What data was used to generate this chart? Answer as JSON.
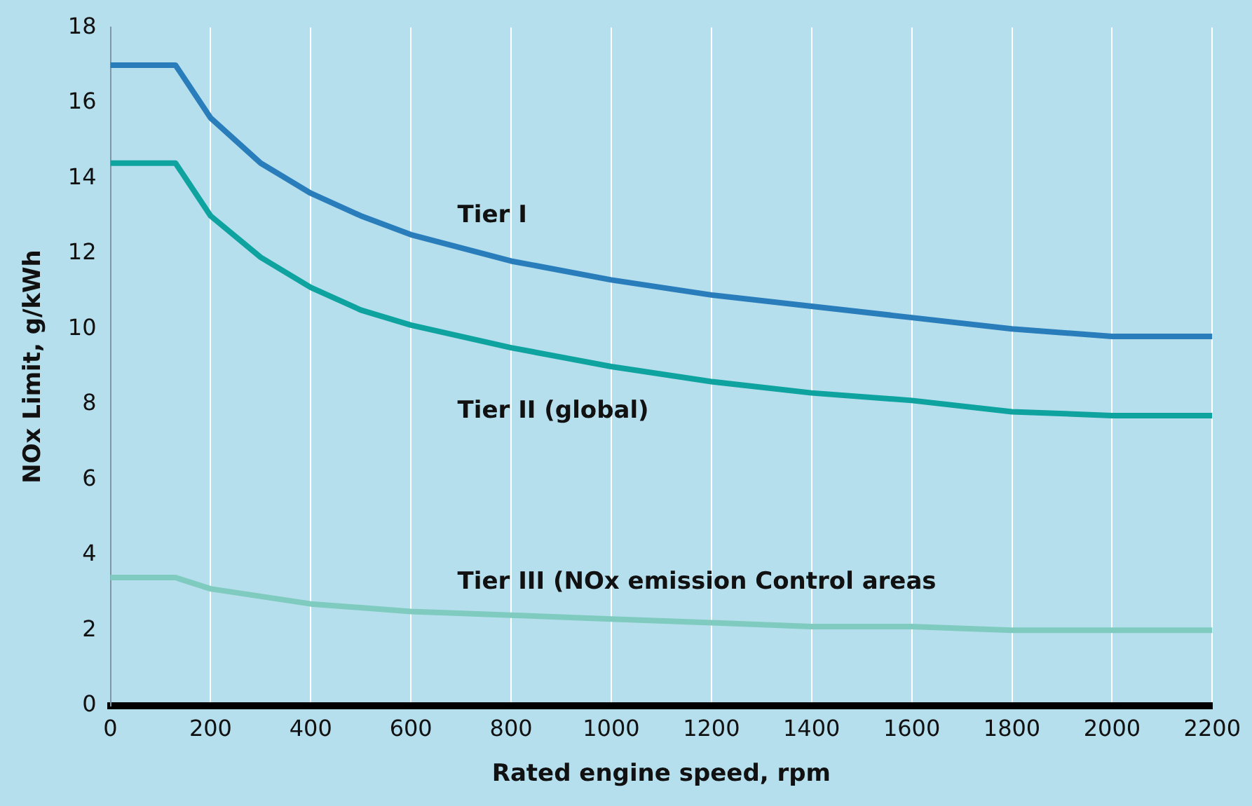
{
  "chart_data": {
    "type": "line",
    "xlabel": "Rated engine speed, rpm",
    "ylabel": "NOx Limit, g/kWh",
    "x": [
      0,
      130,
      200,
      300,
      400,
      500,
      600,
      800,
      1000,
      1200,
      1400,
      1600,
      1800,
      2000,
      2200
    ],
    "series": [
      {
        "name": "Tier I",
        "color": "#2a7dbb",
        "values": [
          17.0,
          17.0,
          15.6,
          14.4,
          13.6,
          13.0,
          12.5,
          11.8,
          11.3,
          10.9,
          10.6,
          10.3,
          10.0,
          9.8,
          9.8
        ]
      },
      {
        "name": "Tier II (global)",
        "color": "#0fa3a0",
        "values": [
          14.4,
          14.4,
          13.0,
          11.9,
          11.1,
          10.5,
          10.1,
          9.5,
          9.0,
          8.6,
          8.3,
          8.1,
          7.8,
          7.7,
          7.7
        ]
      },
      {
        "name": "Tier III (NOx emission Control areas",
        "color": "#7fcbbf",
        "values": [
          3.4,
          3.4,
          3.1,
          2.9,
          2.7,
          2.6,
          2.5,
          2.4,
          2.3,
          2.2,
          2.1,
          2.1,
          2.0,
          2.0,
          2.0
        ]
      }
    ],
    "xlim": [
      0,
      2200
    ],
    "xticks": [
      0,
      200,
      400,
      600,
      800,
      1000,
      1200,
      1400,
      1600,
      1800,
      2000,
      2200
    ],
    "ylim": [
      0,
      18
    ],
    "yticks": [
      0,
      2,
      4,
      6,
      8,
      10,
      12,
      14,
      16,
      18
    ],
    "grid": "x",
    "legend": false,
    "marker": "none",
    "line_style": "solid"
  }
}
